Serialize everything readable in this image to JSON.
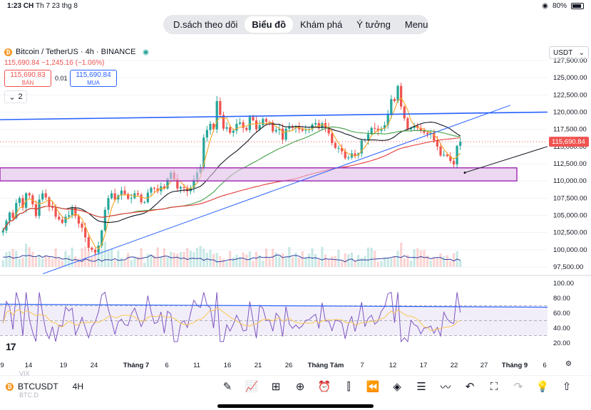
{
  "status": {
    "time": "1:23 CH",
    "date": "Th 7 23 thg 8",
    "battery": "80%"
  },
  "nav": {
    "tabs": [
      "D.sách theo dõi",
      "Biểu đồ",
      "Khám phá",
      "Ý tưởng",
      "Menu"
    ],
    "active_index": 1
  },
  "symbol": {
    "title": "Bitcoin / TetherUS · 4h · BINANCE",
    "price_line": "115,690.84  −1,245.16 (−1.06%)",
    "sell": {
      "price": "115,690.83",
      "label": "BÁN"
    },
    "spread": "0.01",
    "buy": {
      "price": "115,690.84",
      "label": "MUA"
    },
    "indicator_count": "2",
    "currency": "USDT"
  },
  "chart_data": {
    "type": "candlestick",
    "price_axis": [
      "127,500.00",
      "125,000.00",
      "122,500.00",
      "120,000.00",
      "117,500.00",
      "115,000.00",
      "112,500.00",
      "110,000.00",
      "107,500.00",
      "105,000.00",
      "102,500.00",
      "100,000.00",
      "97,500.00"
    ],
    "last_price": "115,690.84",
    "price_range": [
      97500,
      127500
    ],
    "rsi_axis": [
      "100.00",
      "80.00",
      "60.00",
      "40.00",
      "20.00"
    ],
    "rsi_range": [
      20,
      100
    ],
    "x_axis": [
      "9",
      "14",
      "19",
      "24",
      "Tháng 7",
      "6",
      "11",
      "16",
      "21",
      "26",
      "Tháng Tám",
      "7",
      "12",
      "17",
      "22",
      "27",
      "Tháng 9",
      "6"
    ],
    "close_path": [
      102800,
      104200,
      105400,
      104600,
      106800,
      107500,
      106100,
      108200,
      107900,
      106600,
      104900,
      107300,
      108200,
      107600,
      106300,
      106100,
      104800,
      104400,
      103900,
      104800,
      105000,
      106100,
      104900,
      103800,
      103200,
      101800,
      100300,
      100000,
      99600,
      100600,
      102800,
      105800,
      107500,
      108200,
      107300,
      107900,
      108600,
      108100,
      107400,
      107500,
      108200,
      108000,
      106900,
      106900,
      108300,
      109000,
      108900,
      108500,
      109200,
      108900,
      110300,
      111200,
      110300,
      108900,
      109100,
      109000,
      108500,
      109000,
      110200,
      111200,
      112000,
      116300,
      117400,
      118300,
      117500,
      121600,
      119600,
      117600,
      117800,
      117000,
      117300,
      118300,
      118500,
      117700,
      117400,
      119300,
      118800,
      117500,
      118100,
      119000,
      118600,
      118500,
      117200,
      117400,
      117600,
      116000,
      117600,
      117900,
      117700,
      117900,
      117500,
      117300,
      117400,
      117500,
      118200,
      118400,
      117700,
      118400,
      117800,
      116900,
      115500,
      114800,
      114800,
      114300,
      113300,
      113400,
      114000,
      113700,
      114000,
      115900,
      116000,
      116800,
      117700,
      117600,
      117300,
      117600,
      118100,
      119600,
      121900,
      121600,
      123800,
      120800,
      119100,
      117500,
      117700,
      118000,
      117700,
      117300,
      117000,
      116800,
      117000,
      115900,
      115000,
      113700,
      113800,
      113600,
      112900,
      112400,
      115100,
      115690
    ],
    "series": [
      {
        "name": "fast MA",
        "color": "#f5a623"
      },
      {
        "name": "black MA",
        "color": "#131722"
      },
      {
        "name": "green MA",
        "color": "#43a047"
      },
      {
        "name": "red MA",
        "color": "#e53935"
      }
    ],
    "zone": {
      "from": 110000,
      "to": 111900,
      "color": "#9c27b0"
    },
    "rsi_levels": [
      70,
      50,
      30
    ]
  },
  "bottom": {
    "ticker": "BTCUSDT",
    "timeframe": "4H",
    "ghost1": "VIX",
    "ghost2": "BTC.D"
  },
  "colors": {
    "up": "#26a69a",
    "down": "#ef5350",
    "accent": "#2962ff"
  }
}
